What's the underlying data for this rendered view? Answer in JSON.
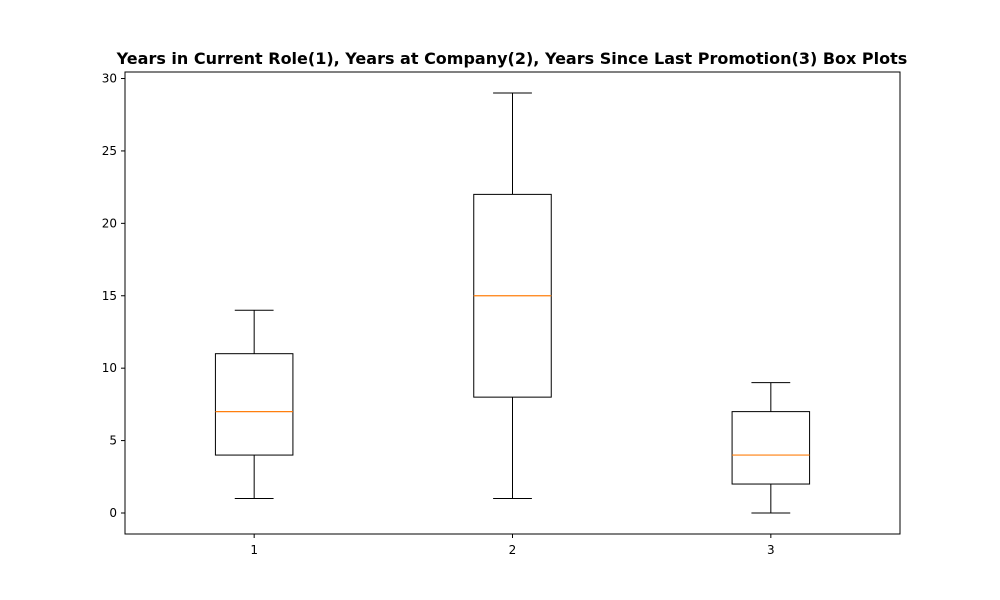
{
  "chart_data": {
    "type": "box",
    "title": "Years in Current Role(1), Years at Company(2), Years Since Last Promotion(3) Box Plots",
    "xlabel": "",
    "ylabel": "",
    "categories": [
      "1",
      "2",
      "3"
    ],
    "boxes": [
      {
        "whisker_low": 1,
        "q1": 4,
        "median": 7,
        "q3": 11,
        "whisker_high": 14
      },
      {
        "whisker_low": 1,
        "q1": 8,
        "median": 15,
        "q3": 22,
        "whisker_high": 29
      },
      {
        "whisker_low": 0,
        "q1": 2,
        "median": 4,
        "q3": 7,
        "whisker_high": 9
      }
    ],
    "yticks": [
      0,
      5,
      10,
      15,
      20,
      25,
      30
    ],
    "ylim": [
      -1.45,
      30.45
    ],
    "grid": false,
    "colors": {
      "box": "#000000",
      "median": "#ff7f0e",
      "background": "#ffffff"
    }
  }
}
